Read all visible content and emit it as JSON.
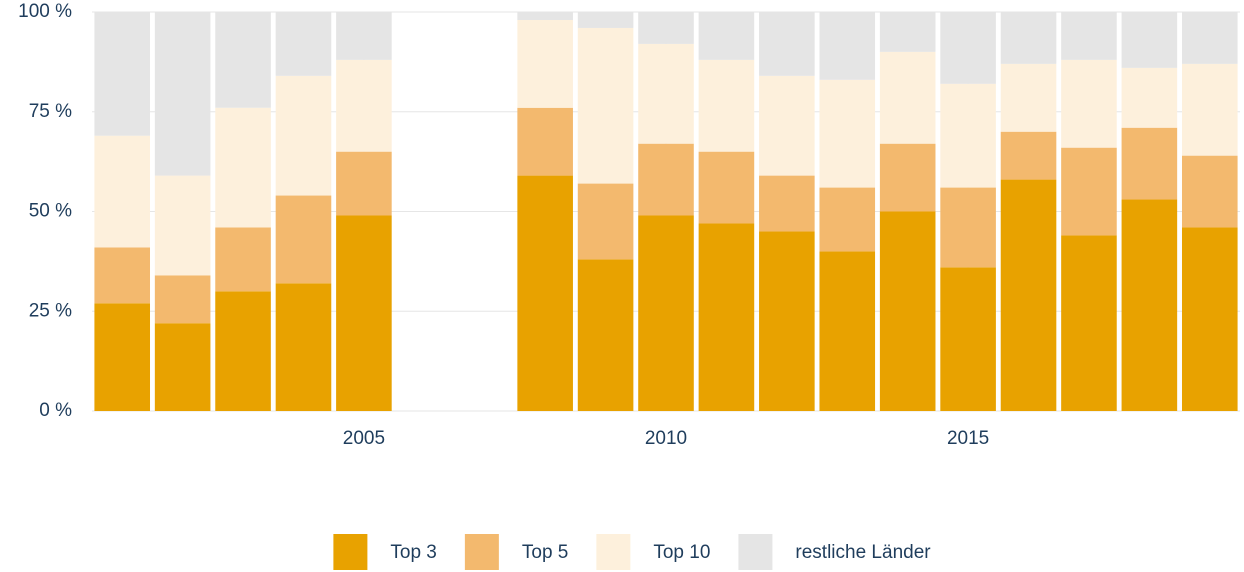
{
  "chart_data": {
    "type": "stacked_bar",
    "x": [
      2001,
      2002,
      2003,
      2004,
      2005,
      2008,
      2009,
      2010,
      2011,
      2012,
      2013,
      2014,
      2015,
      2016,
      2017,
      2018,
      2019
    ],
    "series": [
      {
        "name": "Top 3",
        "color": "#e8a200",
        "values": [
          27,
          22,
          30,
          32,
          49,
          59,
          38,
          49,
          47,
          45,
          40,
          50,
          36,
          58,
          44,
          53,
          46
        ]
      },
      {
        "name": "Top 5",
        "color": "#f3b96e",
        "values": [
          14,
          12,
          16,
          22,
          16,
          17,
          19,
          18,
          18,
          14,
          16,
          17,
          20,
          12,
          22,
          18,
          18
        ]
      },
      {
        "name": "Top 10",
        "color": "#fdf0dc",
        "values": [
          28,
          25,
          30,
          30,
          23,
          22,
          39,
          25,
          23,
          25,
          27,
          23,
          26,
          17,
          22,
          15,
          23
        ]
      },
      {
        "name": "restliche Länder",
        "color": "#e5e5e5",
        "values": [
          31,
          41,
          24,
          16,
          12,
          2,
          4,
          8,
          12,
          16,
          17,
          10,
          18,
          13,
          12,
          14,
          13
        ]
      }
    ],
    "xlim": [
      2000.5,
      2019.5
    ],
    "xticks": [
      2005,
      2010,
      2015
    ],
    "ylim": [
      0,
      100
    ],
    "yticks": [
      {
        "value": 0,
        "label": "0 %"
      },
      {
        "value": 25,
        "label": "25 %"
      },
      {
        "value": 50,
        "label": "50 %"
      },
      {
        "value": 75,
        "label": "75 %"
      },
      {
        "value": 100,
        "label": "100 %"
      }
    ],
    "grid": true,
    "legend": "bottom"
  }
}
